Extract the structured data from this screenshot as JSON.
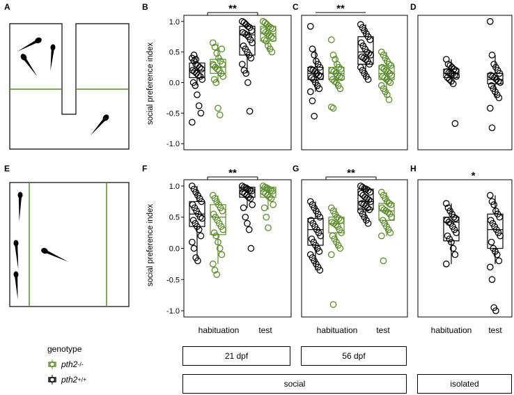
{
  "panel_letters": [
    "A",
    "B",
    "C",
    "D",
    "E",
    "F",
    "G",
    "H"
  ],
  "ylabel": "social preference index",
  "yticks": [
    "1.0",
    "0.5",
    "0.0",
    "-0.5",
    "-1.0"
  ],
  "xlabels": [
    "habituation",
    "test"
  ],
  "significance": {
    "B": "**",
    "C": "**",
    "F": "**",
    "G": "**",
    "H": "*"
  },
  "groups": {
    "age_21": "21 dpf",
    "age_56": "56 dpf",
    "social": "social",
    "isolated": "isolated"
  },
  "legend": {
    "title": "genotype",
    "items": [
      {
        "gene": "pth2",
        "sup": "-/-",
        "color": "#5b8c2a"
      },
      {
        "gene": "pth2",
        "sup": "+/+",
        "color": "#000000"
      }
    ]
  },
  "colors": {
    "mutant": "#5b8c2a",
    "wildtype": "#000000",
    "arena_line": "#5b8c2a"
  },
  "chart_data": [
    {
      "panel": "B",
      "type": "box",
      "ylim": [
        -1.1,
        1.1
      ],
      "series": [
        {
          "name": "pth2+/+ habituation",
          "genotype": "wildtype",
          "box": {
            "q1": 0.08,
            "median": 0.2,
            "q3": 0.32,
            "low": -0.05,
            "high": 0.45
          },
          "values": [
            0.4,
            0.35,
            0.3,
            0.28,
            0.25,
            0.22,
            0.2,
            0.18,
            0.15,
            0.12,
            0.1,
            0.05,
            0.0,
            -0.05,
            -0.2,
            -0.38,
            -0.5,
            -0.65,
            0.45,
            0.38
          ]
        },
        {
          "name": "pth2-/- habituation",
          "genotype": "mutant",
          "box": {
            "q1": 0.15,
            "median": 0.25,
            "q3": 0.38,
            "low": 0.0,
            "high": 0.65
          },
          "values": [
            0.65,
            0.58,
            0.48,
            0.4,
            0.35,
            0.3,
            0.28,
            0.25,
            0.22,
            0.2,
            0.15,
            0.1,
            0.05,
            0.0,
            -0.42,
            -0.53,
            0.55,
            0.3
          ]
        },
        {
          "name": "pth2+/+ test",
          "genotype": "wildtype",
          "box": {
            "q1": 0.45,
            "median": 0.78,
            "q3": 0.92,
            "low": 0.15,
            "high": 1.0
          },
          "values": [
            1.0,
            0.98,
            0.95,
            0.92,
            0.9,
            0.85,
            0.82,
            0.8,
            0.78,
            0.75,
            0.7,
            0.65,
            0.6,
            0.55,
            0.5,
            0.45,
            0.4,
            0.3,
            0.2,
            0.15,
            -0.0,
            -0.47
          ]
        },
        {
          "name": "pth2-/- test",
          "genotype": "mutant",
          "box": {
            "q1": 0.68,
            "median": 0.8,
            "q3": 0.92,
            "low": 0.5,
            "high": 1.0
          },
          "values": [
            1.0,
            0.98,
            0.95,
            0.92,
            0.9,
            0.88,
            0.85,
            0.82,
            0.8,
            0.78,
            0.75,
            0.72,
            0.7,
            0.68,
            0.6,
            0.55,
            0.5
          ]
        }
      ]
    },
    {
      "panel": "C",
      "type": "box",
      "ylim": [
        -1.1,
        1.1
      ],
      "series": [
        {
          "name": "pth2+/+ habituation",
          "genotype": "wildtype",
          "box": {
            "q1": 0.05,
            "median": 0.15,
            "q3": 0.25,
            "low": -0.15,
            "high": 0.55
          },
          "values": [
            0.92,
            0.55,
            0.45,
            0.35,
            0.3,
            0.25,
            0.22,
            0.2,
            0.18,
            0.15,
            0.12,
            0.1,
            0.08,
            0.05,
            0.0,
            -0.05,
            -0.1,
            -0.15,
            -0.3,
            -0.55
          ]
        },
        {
          "name": "pth2-/- habituation",
          "genotype": "mutant",
          "box": {
            "q1": 0.05,
            "median": 0.15,
            "q3": 0.25,
            "low": -0.1,
            "high": 0.45
          },
          "values": [
            0.7,
            0.45,
            0.38,
            0.3,
            0.25,
            0.22,
            0.2,
            0.18,
            0.15,
            0.12,
            0.1,
            0.08,
            0.05,
            0.02,
            0.0,
            -0.05,
            -0.1,
            -0.4,
            -0.42
          ]
        },
        {
          "name": "pth2+/+ test",
          "genotype": "wildtype",
          "box": {
            "q1": 0.3,
            "median": 0.5,
            "q3": 0.75,
            "low": 0.05,
            "high": 0.95
          },
          "values": [
            0.95,
            0.9,
            0.85,
            0.8,
            0.75,
            0.7,
            0.65,
            0.6,
            0.55,
            0.5,
            0.48,
            0.45,
            0.42,
            0.4,
            0.38,
            0.35,
            0.3,
            0.25,
            0.2,
            0.15,
            0.1,
            0.05
          ]
        },
        {
          "name": "pth2-/- test",
          "genotype": "mutant",
          "box": {
            "q1": 0.05,
            "median": 0.15,
            "q3": 0.28,
            "low": -0.25,
            "high": 0.5
          },
          "values": [
            0.5,
            0.45,
            0.4,
            0.35,
            0.3,
            0.28,
            0.25,
            0.22,
            0.2,
            0.18,
            0.15,
            0.12,
            0.1,
            0.08,
            0.05,
            0.02,
            0.0,
            -0.05,
            -0.1,
            -0.15,
            -0.2,
            -0.28
          ]
        }
      ]
    },
    {
      "panel": "D",
      "type": "box",
      "ylim": [
        -1.1,
        1.1
      ],
      "series": [
        {
          "name": "pth2+/+ habituation",
          "genotype": "wildtype",
          "box": {
            "q1": 0.08,
            "median": 0.15,
            "q3": 0.22,
            "low": -0.02,
            "high": 0.38
          },
          "values": [
            0.38,
            0.3,
            0.28,
            0.25,
            0.22,
            0.2,
            0.18,
            0.16,
            0.15,
            0.14,
            0.12,
            0.1,
            0.08,
            0.05,
            0.02,
            -0.02,
            -0.67
          ]
        },
        {
          "name": "pth2+/+ test",
          "genotype": "wildtype",
          "box": {
            "q1": -0.02,
            "median": 0.05,
            "q3": 0.15,
            "low": -0.25,
            "high": 0.45
          },
          "values": [
            1.0,
            0.45,
            0.3,
            0.25,
            0.2,
            0.15,
            0.12,
            0.1,
            0.08,
            0.05,
            0.02,
            0.0,
            -0.05,
            -0.1,
            -0.15,
            -0.2,
            -0.25,
            -0.42,
            -0.74
          ]
        }
      ]
    },
    {
      "panel": "F",
      "type": "box",
      "ylim": [
        -1.1,
        1.1
      ],
      "series": [
        {
          "name": "pth2+/+ habituation",
          "genotype": "wildtype",
          "box": {
            "q1": 0.35,
            "median": 0.55,
            "q3": 0.75,
            "low": -0.15,
            "high": 1.0
          },
          "values": [
            1.0,
            0.95,
            0.9,
            0.85,
            0.8,
            0.75,
            0.7,
            0.65,
            0.6,
            0.55,
            0.5,
            0.48,
            0.45,
            0.4,
            0.35,
            0.3,
            0.2,
            0.1,
            0.0,
            -0.15,
            -0.2
          ]
        },
        {
          "name": "pth2-/- habituation",
          "genotype": "mutant",
          "box": {
            "q1": 0.22,
            "median": 0.5,
            "q3": 0.7,
            "low": -0.25,
            "high": 0.85
          },
          "values": [
            0.85,
            0.8,
            0.75,
            0.7,
            0.65,
            0.6,
            0.55,
            0.5,
            0.45,
            0.4,
            0.35,
            0.3,
            0.25,
            0.2,
            0.1,
            0.0,
            -0.1,
            -0.25,
            -0.35,
            -0.42
          ]
        },
        {
          "name": "pth2+/+ test",
          "genotype": "wildtype",
          "box": {
            "q1": 0.82,
            "median": 0.92,
            "q3": 0.98,
            "low": 0.65,
            "high": 1.0
          },
          "values": [
            1.0,
            0.98,
            0.97,
            0.95,
            0.93,
            0.92,
            0.9,
            0.88,
            0.85,
            0.82,
            0.8,
            0.7,
            0.65,
            0.5,
            0.4,
            0.3,
            0.0
          ]
        },
        {
          "name": "pth2-/- test",
          "genotype": "mutant",
          "box": {
            "q1": 0.82,
            "median": 0.92,
            "q3": 0.98,
            "low": 0.62,
            "high": 1.0
          },
          "values": [
            1.0,
            0.98,
            0.97,
            0.95,
            0.93,
            0.92,
            0.9,
            0.88,
            0.85,
            0.82,
            0.8,
            0.7,
            0.65,
            0.5,
            0.33
          ]
        }
      ]
    },
    {
      "panel": "G",
      "type": "box",
      "ylim": [
        -1.1,
        1.1
      ],
      "series": [
        {
          "name": "pth2+/+ habituation",
          "genotype": "wildtype",
          "box": {
            "q1": 0.05,
            "median": 0.3,
            "q3": 0.48,
            "low": -0.35,
            "high": 0.75
          },
          "values": [
            0.75,
            0.7,
            0.65,
            0.6,
            0.55,
            0.5,
            0.45,
            0.4,
            0.35,
            0.3,
            0.25,
            0.2,
            0.15,
            0.1,
            0.05,
            0.0,
            -0.05,
            -0.1,
            -0.15,
            -0.2,
            -0.25,
            -0.3,
            -0.35
          ]
        },
        {
          "name": "pth2-/- habituation",
          "genotype": "mutant",
          "box": {
            "q1": 0.25,
            "median": 0.4,
            "q3": 0.5,
            "low": 0.0,
            "high": 0.65
          },
          "values": [
            0.65,
            0.6,
            0.55,
            0.5,
            0.48,
            0.45,
            0.42,
            0.4,
            0.38,
            0.35,
            0.3,
            0.25,
            0.2,
            0.15,
            0.1,
            0.05,
            0.0,
            -0.1,
            -0.9
          ]
        },
        {
          "name": "pth2+/+ test",
          "genotype": "wildtype",
          "box": {
            "q1": 0.62,
            "median": 0.75,
            "q3": 0.95,
            "low": 0.4,
            "high": 1.0
          },
          "values": [
            1.0,
            0.98,
            0.96,
            0.95,
            0.93,
            0.9,
            0.88,
            0.85,
            0.82,
            0.8,
            0.78,
            0.75,
            0.72,
            0.7,
            0.68,
            0.65,
            0.62,
            0.6,
            0.55,
            0.5,
            0.45,
            0.4
          ]
        },
        {
          "name": "pth2-/- test",
          "genotype": "mutant",
          "box": {
            "q1": 0.45,
            "median": 0.6,
            "q3": 0.72,
            "low": 0.2,
            "high": 0.9
          },
          "values": [
            0.9,
            0.85,
            0.8,
            0.75,
            0.72,
            0.7,
            0.65,
            0.62,
            0.6,
            0.58,
            0.55,
            0.5,
            0.45,
            0.4,
            0.35,
            0.3,
            0.25,
            0.2,
            -0.2
          ]
        }
      ]
    },
    {
      "panel": "H",
      "type": "box",
      "ylim": [
        -1.1,
        1.1
      ],
      "series": [
        {
          "name": "pth2+/+ habituation",
          "genotype": "wildtype",
          "box": {
            "q1": 0.12,
            "median": 0.42,
            "q3": 0.5,
            "low": -0.25,
            "high": 0.72
          },
          "values": [
            0.72,
            0.65,
            0.6,
            0.55,
            0.5,
            0.48,
            0.45,
            0.42,
            0.4,
            0.35,
            0.3,
            0.25,
            0.2,
            0.15,
            0.1,
            0.0,
            -0.1,
            -0.25
          ]
        },
        {
          "name": "pth2+/+ test",
          "genotype": "wildtype",
          "box": {
            "q1": 0.0,
            "median": 0.3,
            "q3": 0.55,
            "low": -0.25,
            "high": 0.85
          },
          "values": [
            0.85,
            0.75,
            0.7,
            0.6,
            0.55,
            0.5,
            0.45,
            0.4,
            0.35,
            0.3,
            0.25,
            0.2,
            0.1,
            0.0,
            -0.05,
            -0.1,
            -0.2,
            -0.3,
            -0.5,
            -0.95,
            -1.0
          ]
        }
      ]
    }
  ]
}
